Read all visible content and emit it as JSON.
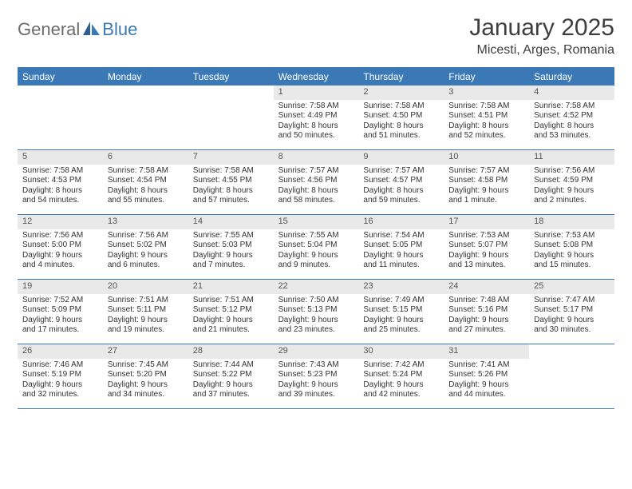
{
  "logo": {
    "word1": "General",
    "word2": "Blue"
  },
  "title": "January 2025",
  "location": "Micesti, Arges, Romania",
  "colors": {
    "accent": "#3a78b6",
    "header_text": "#ffffff",
    "daynum_bg": "#e9e9e9",
    "text": "#333333",
    "logo_gray": "#6b6b6b"
  },
  "day_names": [
    "Sunday",
    "Monday",
    "Tuesday",
    "Wednesday",
    "Thursday",
    "Friday",
    "Saturday"
  ],
  "weeks": [
    [
      null,
      null,
      null,
      {
        "n": "1",
        "sr": "7:58 AM",
        "ss": "4:49 PM",
        "dl1": "Daylight: 8 hours",
        "dl2": "and 50 minutes."
      },
      {
        "n": "2",
        "sr": "7:58 AM",
        "ss": "4:50 PM",
        "dl1": "Daylight: 8 hours",
        "dl2": "and 51 minutes."
      },
      {
        "n": "3",
        "sr": "7:58 AM",
        "ss": "4:51 PM",
        "dl1": "Daylight: 8 hours",
        "dl2": "and 52 minutes."
      },
      {
        "n": "4",
        "sr": "7:58 AM",
        "ss": "4:52 PM",
        "dl1": "Daylight: 8 hours",
        "dl2": "and 53 minutes."
      }
    ],
    [
      {
        "n": "5",
        "sr": "7:58 AM",
        "ss": "4:53 PM",
        "dl1": "Daylight: 8 hours",
        "dl2": "and 54 minutes."
      },
      {
        "n": "6",
        "sr": "7:58 AM",
        "ss": "4:54 PM",
        "dl1": "Daylight: 8 hours",
        "dl2": "and 55 minutes."
      },
      {
        "n": "7",
        "sr": "7:58 AM",
        "ss": "4:55 PM",
        "dl1": "Daylight: 8 hours",
        "dl2": "and 57 minutes."
      },
      {
        "n": "8",
        "sr": "7:57 AM",
        "ss": "4:56 PM",
        "dl1": "Daylight: 8 hours",
        "dl2": "and 58 minutes."
      },
      {
        "n": "9",
        "sr": "7:57 AM",
        "ss": "4:57 PM",
        "dl1": "Daylight: 8 hours",
        "dl2": "and 59 minutes."
      },
      {
        "n": "10",
        "sr": "7:57 AM",
        "ss": "4:58 PM",
        "dl1": "Daylight: 9 hours",
        "dl2": "and 1 minute."
      },
      {
        "n": "11",
        "sr": "7:56 AM",
        "ss": "4:59 PM",
        "dl1": "Daylight: 9 hours",
        "dl2": "and 2 minutes."
      }
    ],
    [
      {
        "n": "12",
        "sr": "7:56 AM",
        "ss": "5:00 PM",
        "dl1": "Daylight: 9 hours",
        "dl2": "and 4 minutes."
      },
      {
        "n": "13",
        "sr": "7:56 AM",
        "ss": "5:02 PM",
        "dl1": "Daylight: 9 hours",
        "dl2": "and 6 minutes."
      },
      {
        "n": "14",
        "sr": "7:55 AM",
        "ss": "5:03 PM",
        "dl1": "Daylight: 9 hours",
        "dl2": "and 7 minutes."
      },
      {
        "n": "15",
        "sr": "7:55 AM",
        "ss": "5:04 PM",
        "dl1": "Daylight: 9 hours",
        "dl2": "and 9 minutes."
      },
      {
        "n": "16",
        "sr": "7:54 AM",
        "ss": "5:05 PM",
        "dl1": "Daylight: 9 hours",
        "dl2": "and 11 minutes."
      },
      {
        "n": "17",
        "sr": "7:53 AM",
        "ss": "5:07 PM",
        "dl1": "Daylight: 9 hours",
        "dl2": "and 13 minutes."
      },
      {
        "n": "18",
        "sr": "7:53 AM",
        "ss": "5:08 PM",
        "dl1": "Daylight: 9 hours",
        "dl2": "and 15 minutes."
      }
    ],
    [
      {
        "n": "19",
        "sr": "7:52 AM",
        "ss": "5:09 PM",
        "dl1": "Daylight: 9 hours",
        "dl2": "and 17 minutes."
      },
      {
        "n": "20",
        "sr": "7:51 AM",
        "ss": "5:11 PM",
        "dl1": "Daylight: 9 hours",
        "dl2": "and 19 minutes."
      },
      {
        "n": "21",
        "sr": "7:51 AM",
        "ss": "5:12 PM",
        "dl1": "Daylight: 9 hours",
        "dl2": "and 21 minutes."
      },
      {
        "n": "22",
        "sr": "7:50 AM",
        "ss": "5:13 PM",
        "dl1": "Daylight: 9 hours",
        "dl2": "and 23 minutes."
      },
      {
        "n": "23",
        "sr": "7:49 AM",
        "ss": "5:15 PM",
        "dl1": "Daylight: 9 hours",
        "dl2": "and 25 minutes."
      },
      {
        "n": "24",
        "sr": "7:48 AM",
        "ss": "5:16 PM",
        "dl1": "Daylight: 9 hours",
        "dl2": "and 27 minutes."
      },
      {
        "n": "25",
        "sr": "7:47 AM",
        "ss": "5:17 PM",
        "dl1": "Daylight: 9 hours",
        "dl2": "and 30 minutes."
      }
    ],
    [
      {
        "n": "26",
        "sr": "7:46 AM",
        "ss": "5:19 PM",
        "dl1": "Daylight: 9 hours",
        "dl2": "and 32 minutes."
      },
      {
        "n": "27",
        "sr": "7:45 AM",
        "ss": "5:20 PM",
        "dl1": "Daylight: 9 hours",
        "dl2": "and 34 minutes."
      },
      {
        "n": "28",
        "sr": "7:44 AM",
        "ss": "5:22 PM",
        "dl1": "Daylight: 9 hours",
        "dl2": "and 37 minutes."
      },
      {
        "n": "29",
        "sr": "7:43 AM",
        "ss": "5:23 PM",
        "dl1": "Daylight: 9 hours",
        "dl2": "and 39 minutes."
      },
      {
        "n": "30",
        "sr": "7:42 AM",
        "ss": "5:24 PM",
        "dl1": "Daylight: 9 hours",
        "dl2": "and 42 minutes."
      },
      {
        "n": "31",
        "sr": "7:41 AM",
        "ss": "5:26 PM",
        "dl1": "Daylight: 9 hours",
        "dl2": "and 44 minutes."
      },
      null
    ]
  ],
  "labels": {
    "sunrise_prefix": "Sunrise: ",
    "sunset_prefix": "Sunset: "
  }
}
